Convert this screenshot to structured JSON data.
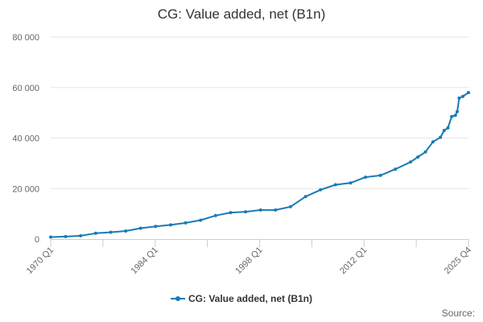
{
  "chart_data": {
    "type": "line",
    "title": "CG: Value added, net (B1n)",
    "xlabel": "",
    "ylabel": "",
    "ylim": [
      0,
      80000
    ],
    "y_ticks": [
      "0",
      "20 000",
      "40 000",
      "60 000",
      "80 000"
    ],
    "x_tick_labels": [
      "1970 Q1",
      "1984 Q1",
      "1998 Q1",
      "2012 Q1",
      "2025 Q4"
    ],
    "x_start_label": "1970 Q1",
    "grid": true,
    "legend": "bottom-center",
    "color": "#1a7ab4",
    "series": [
      {
        "name": "CG: Value added, net (B1n)",
        "x": [
          "1970 Q1",
          "1972 Q1",
          "1974 Q1",
          "1976 Q1",
          "1978 Q1",
          "1980 Q1",
          "1982 Q1",
          "1984 Q1",
          "1986 Q1",
          "1988 Q1",
          "1990 Q1",
          "1992 Q1",
          "1994 Q1",
          "1996 Q1",
          "1998 Q1",
          "2000 Q1",
          "2002 Q1",
          "2004 Q1",
          "2006 Q1",
          "2008 Q1",
          "2010 Q1",
          "2012 Q1",
          "2014 Q1",
          "2016 Q1",
          "2018 Q1",
          "2019 Q1",
          "2020 Q1",
          "2021 Q1",
          "2022 Q1",
          "2022 Q3",
          "2023 Q1",
          "2023 Q3",
          "2024 Q1",
          "2024 Q2",
          "2024 Q3",
          "2025 Q1",
          "2025 Q4"
        ],
        "values": [
          800,
          1000,
          1300,
          2300,
          2700,
          3200,
          4300,
          5000,
          5600,
          6400,
          7500,
          9300,
          10500,
          10800,
          11500,
          11500,
          12800,
          16800,
          19500,
          21500,
          22200,
          24500,
          25200,
          27700,
          30500,
          32500,
          34500,
          38500,
          40300,
          43000,
          44000,
          48500,
          49000,
          50500,
          55800,
          56500,
          58000
        ]
      }
    ]
  },
  "legend_label": "CG: Value added, net (B1n)",
  "source_label": "Source:"
}
